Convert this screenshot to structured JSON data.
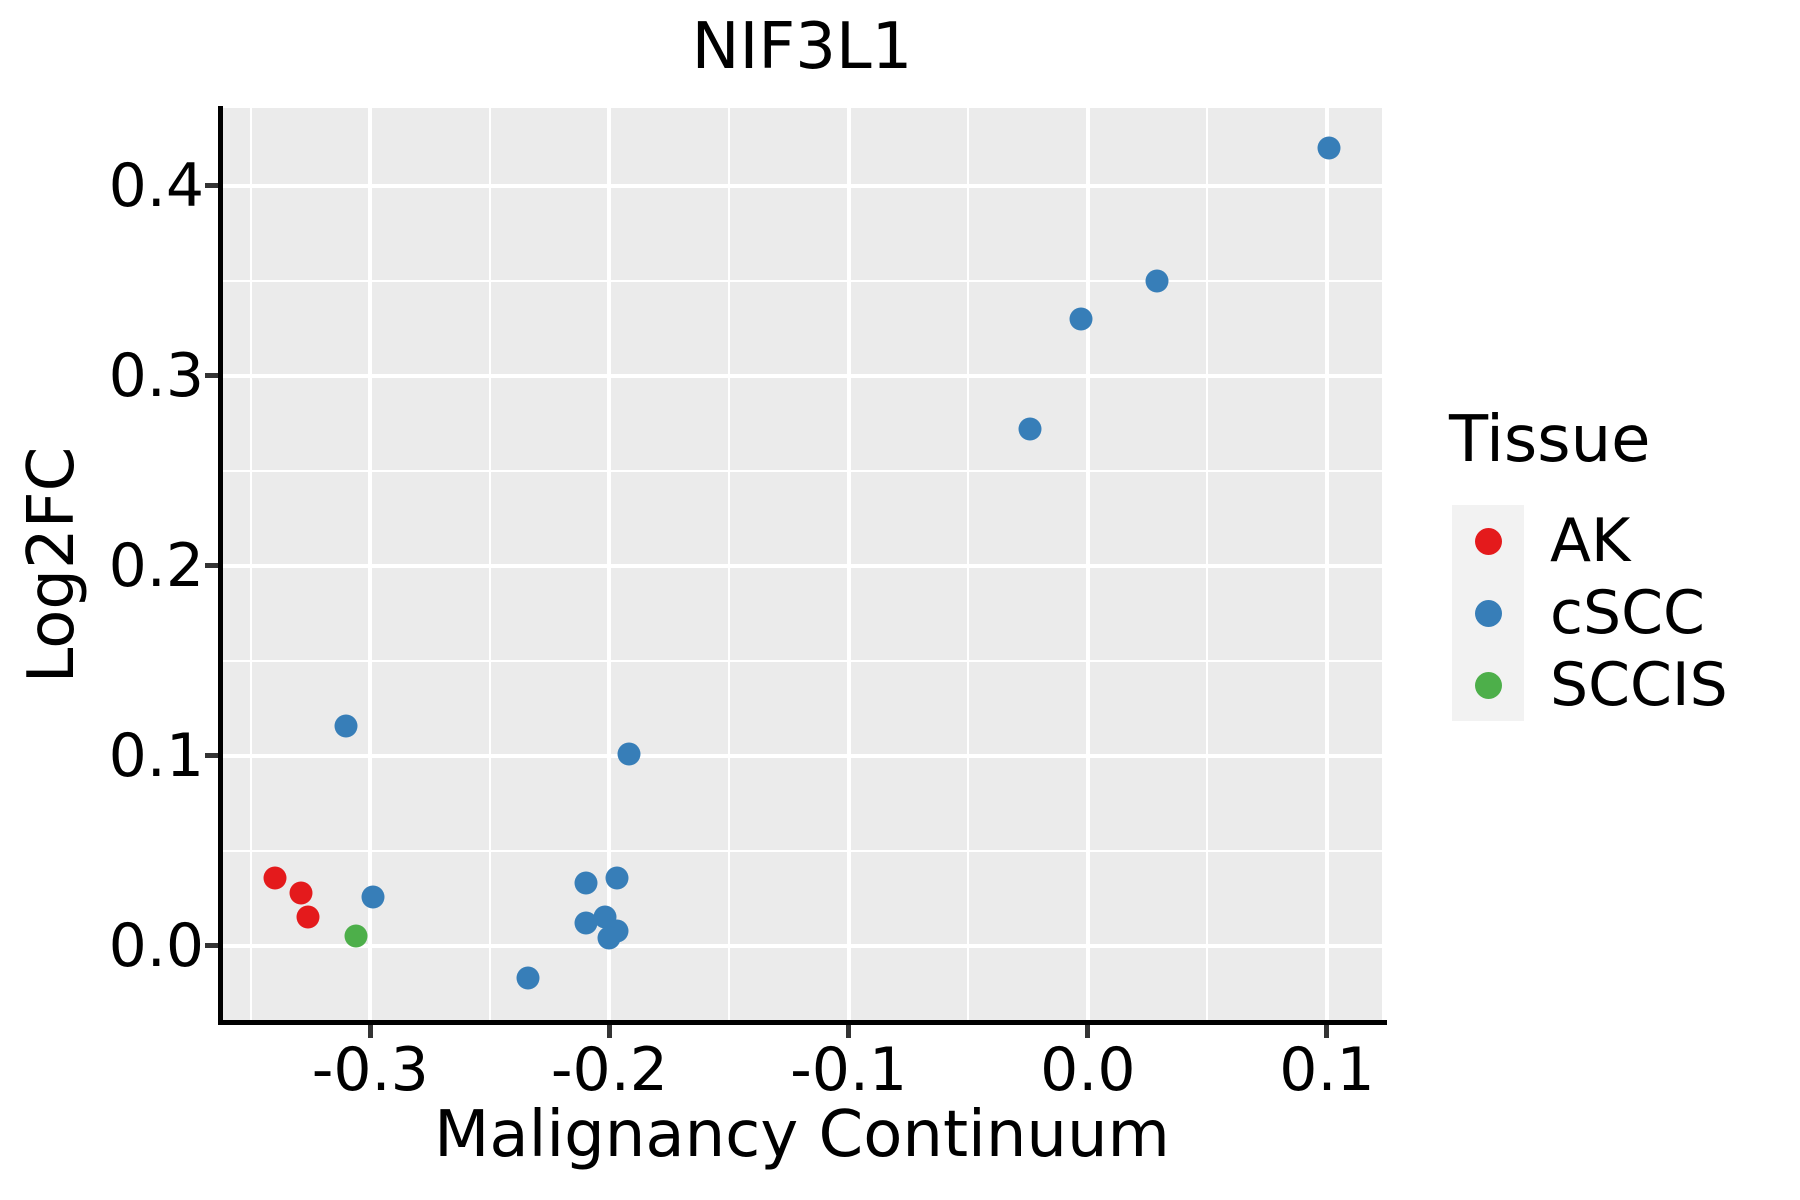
{
  "chart_data": {
    "type": "scatter",
    "title": "NIF3L1",
    "xlabel": "Malignancy Continuum",
    "ylabel": "Log2FC",
    "xlim": [
      -0.362,
      0.123
    ],
    "ylim": [
      -0.04,
      0.441
    ],
    "grid": true,
    "panel_background": "#EBEBEB",
    "gridline_color": "#ffffff",
    "x_ticks": {
      "values": [
        -0.3,
        -0.2,
        -0.1,
        0.0,
        0.1
      ],
      "labels": [
        "-0.3",
        "-0.2",
        "-0.1",
        "0.0",
        "0.1"
      ]
    },
    "y_ticks": {
      "values": [
        0.0,
        0.1,
        0.2,
        0.3,
        0.4
      ],
      "labels": [
        "0.0",
        "0.1",
        "0.2",
        "0.3",
        "0.4"
      ]
    },
    "legend": {
      "title": "Tissue",
      "position": "right",
      "entries": [
        {
          "label": "AK",
          "color": "#E41A1C"
        },
        {
          "label": "cSCC",
          "color": "#377EB8"
        },
        {
          "label": "SCCIS",
          "color": "#4DAF4A"
        }
      ]
    },
    "series": [
      {
        "name": "AK",
        "color": "#E41A1C",
        "points": [
          [
            -0.34,
            0.036
          ],
          [
            -0.329,
            0.028
          ],
          [
            -0.326,
            0.015
          ]
        ]
      },
      {
        "name": "cSCC",
        "color": "#377EB8",
        "points": [
          [
            0.101,
            0.42
          ],
          [
            0.029,
            0.35
          ],
          [
            -0.003,
            0.33
          ],
          [
            -0.024,
            0.272
          ],
          [
            -0.31,
            0.116
          ],
          [
            -0.192,
            0.101
          ],
          [
            -0.299,
            0.026
          ],
          [
            -0.21,
            0.033
          ],
          [
            -0.197,
            0.036
          ],
          [
            -0.21,
            0.012
          ],
          [
            -0.202,
            0.015
          ],
          [
            -0.197,
            0.008
          ],
          [
            -0.2,
            0.004
          ],
          [
            -0.234,
            -0.017
          ]
        ]
      },
      {
        "name": "SCCIS",
        "color": "#4DAF4A",
        "points": [
          [
            -0.306,
            0.005
          ]
        ]
      }
    ]
  }
}
